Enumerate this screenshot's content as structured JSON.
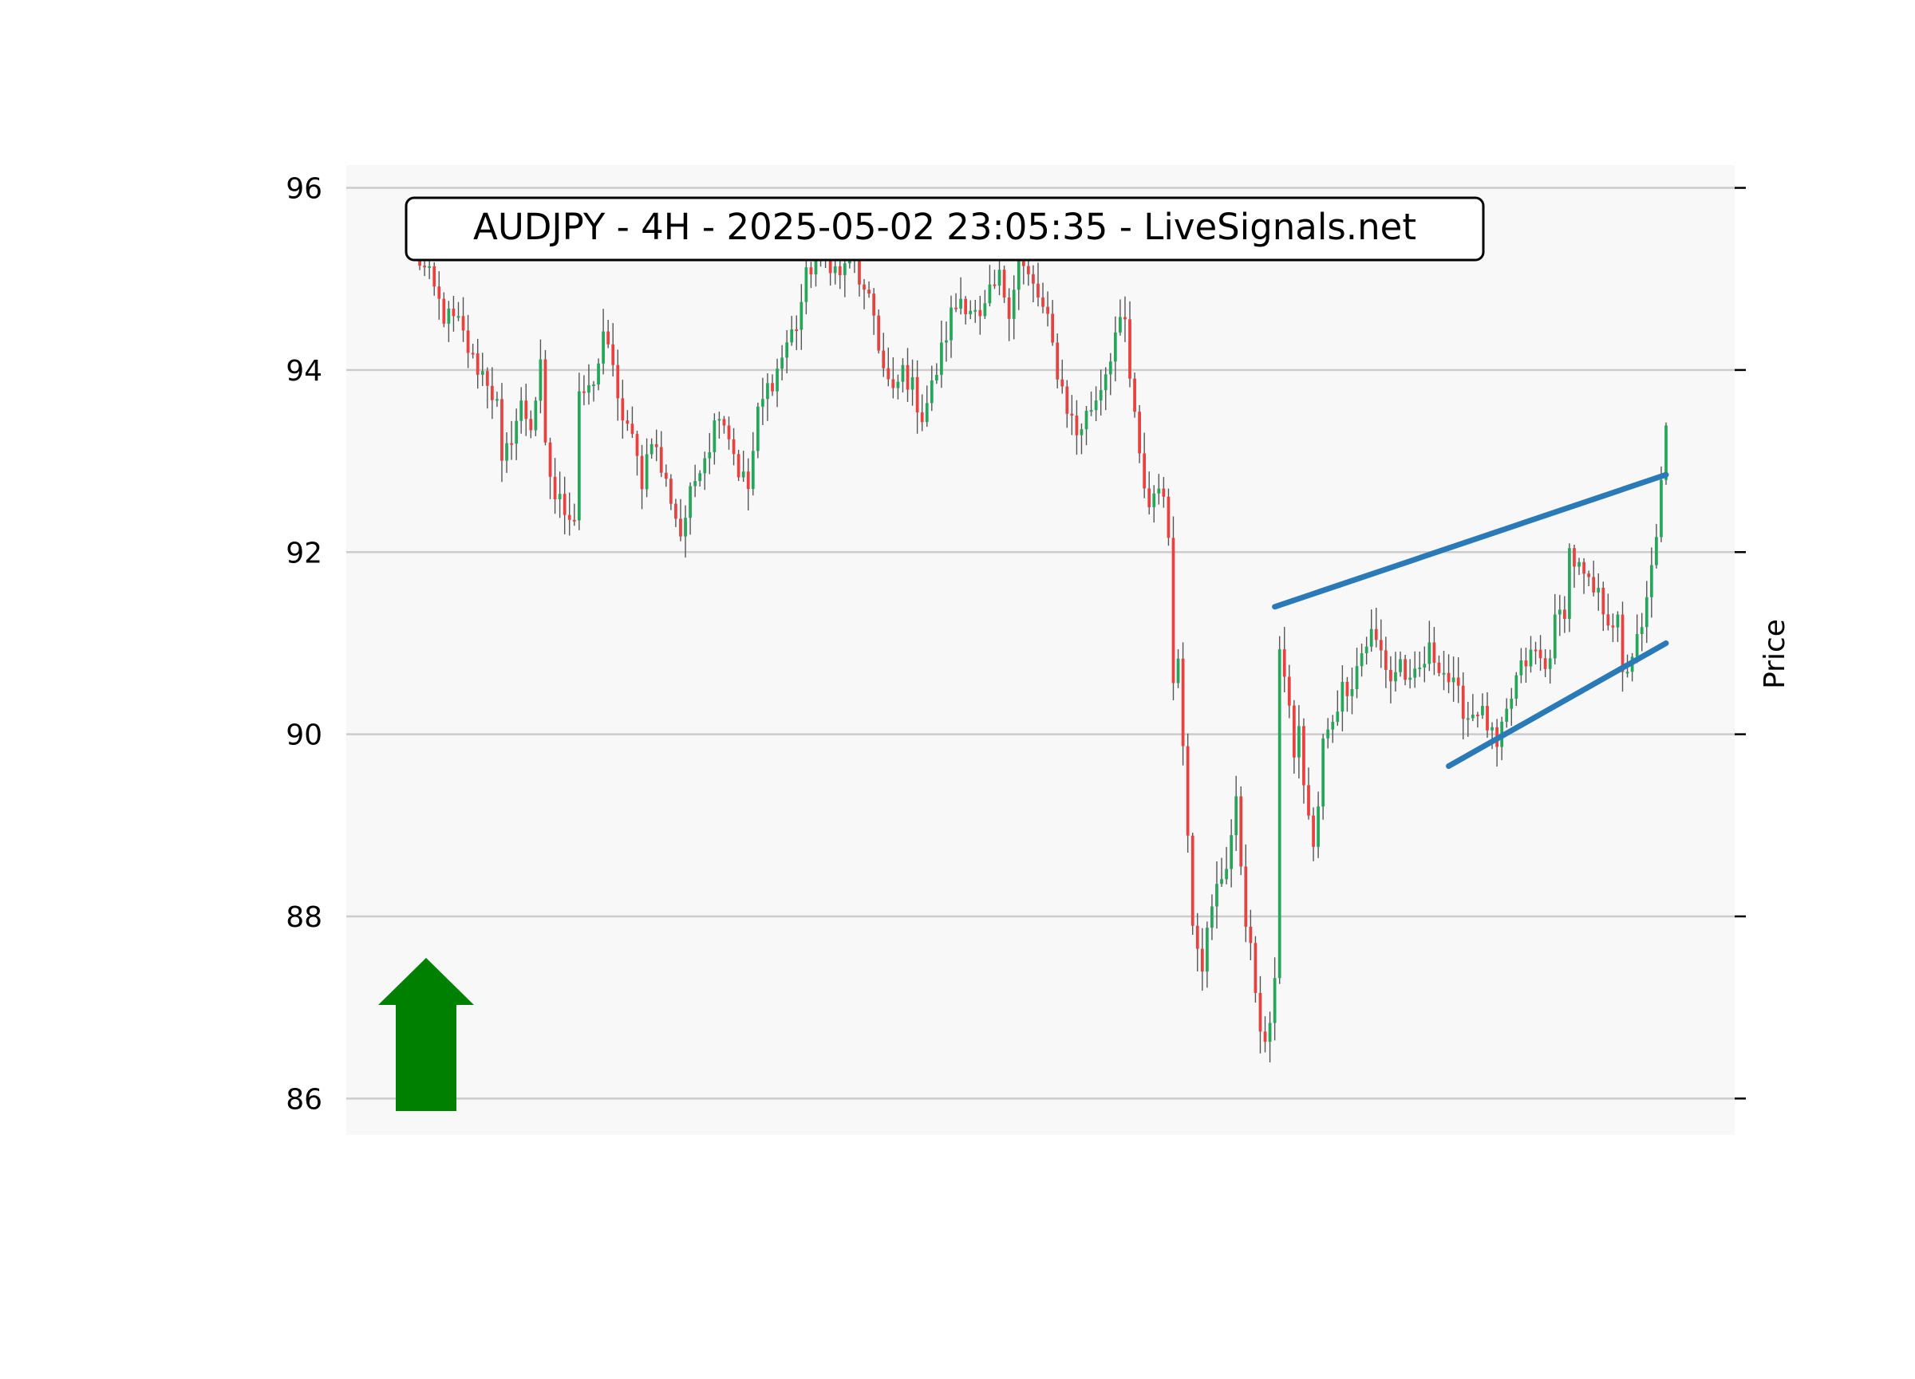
{
  "chart_data": {
    "type": "candlestick",
    "title": "AUDJPY - 4H - 2025-05-02 23:05:35 - LiveSignals.net",
    "ylabel": "Price",
    "xlabel": "",
    "ylim": [
      85.6,
      96.25
    ],
    "yticks": [
      86,
      88,
      90,
      92,
      94,
      96
    ],
    "ytick_labels": [
      "86",
      "88",
      "90",
      "92",
      "94",
      "96"
    ],
    "grid": true,
    "colors": {
      "up": "#26a65b",
      "down": "#e8413f",
      "wick": "#555555",
      "trendline": "#2a7ab8",
      "arrow": "#008000",
      "plot_bg": "#f8f8f8",
      "grid": "#cccccc"
    },
    "signal": {
      "direction": "up",
      "icon": "up-arrow-icon"
    },
    "x_count": 260,
    "anchors": [
      [
        0,
        95.3
      ],
      [
        3,
        95.0
      ],
      [
        6,
        94.6
      ],
      [
        9,
        94.5
      ],
      [
        12,
        94.1
      ],
      [
        15,
        93.9
      ],
      [
        17,
        93.6
      ],
      [
        18,
        92.9
      ],
      [
        20,
        93.3
      ],
      [
        22,
        93.6
      ],
      [
        24,
        93.4
      ],
      [
        26,
        94.0
      ],
      [
        27,
        93.1
      ],
      [
        29,
        92.6
      ],
      [
        31,
        92.5
      ],
      [
        33,
        92.4
      ],
      [
        34,
        93.8
      ],
      [
        36,
        93.7
      ],
      [
        38,
        94.0
      ],
      [
        39,
        94.5
      ],
      [
        40,
        94.3
      ],
      [
        42,
        93.6
      ],
      [
        44,
        93.4
      ],
      [
        46,
        93.0
      ],
      [
        47,
        92.8
      ],
      [
        49,
        93.3
      ],
      [
        51,
        92.9
      ],
      [
        53,
        92.6
      ],
      [
        55,
        92.2
      ],
      [
        57,
        92.6
      ],
      [
        59,
        93.0
      ],
      [
        61,
        93.2
      ],
      [
        63,
        93.6
      ],
      [
        65,
        93.3
      ],
      [
        67,
        92.9
      ],
      [
        69,
        92.7
      ],
      [
        71,
        93.5
      ],
      [
        73,
        93.8
      ],
      [
        75,
        94.0
      ],
      [
        77,
        94.3
      ],
      [
        79,
        94.5
      ],
      [
        81,
        95.0
      ],
      [
        84,
        95.4
      ],
      [
        86,
        95.2
      ],
      [
        88,
        95.0
      ],
      [
        90,
        95.4
      ],
      [
        93,
        94.8
      ],
      [
        95,
        94.6
      ],
      [
        97,
        94.0
      ],
      [
        99,
        93.7
      ],
      [
        101,
        94.0
      ],
      [
        103,
        93.8
      ],
      [
        105,
        93.5
      ],
      [
        107,
        93.8
      ],
      [
        109,
        94.2
      ],
      [
        111,
        94.6
      ],
      [
        113,
        94.8
      ],
      [
        115,
        94.7
      ],
      [
        117,
        94.5
      ],
      [
        119,
        94.8
      ],
      [
        121,
        95.0
      ],
      [
        123,
        94.7
      ],
      [
        125,
        95.2
      ],
      [
        127,
        95.0
      ],
      [
        129,
        94.8
      ],
      [
        131,
        94.5
      ],
      [
        133,
        94.0
      ],
      [
        135,
        93.6
      ],
      [
        137,
        93.3
      ],
      [
        139,
        93.5
      ],
      [
        141,
        93.7
      ],
      [
        143,
        94.0
      ],
      [
        145,
        94.4
      ],
      [
        147,
        94.5
      ],
      [
        148,
        93.9
      ],
      [
        150,
        93.0
      ],
      [
        152,
        92.5
      ],
      [
        154,
        92.8
      ],
      [
        156,
        92.2
      ],
      [
        157,
        90.7
      ],
      [
        158,
        90.8
      ],
      [
        160,
        89.0
      ],
      [
        161,
        88.0
      ],
      [
        163,
        87.5
      ],
      [
        164,
        87.8
      ],
      [
        166,
        88.3
      ],
      [
        168,
        88.6
      ],
      [
        170,
        89.2
      ],
      [
        172,
        88.0
      ],
      [
        173,
        87.6
      ],
      [
        174,
        87.2
      ],
      [
        175,
        86.6
      ],
      [
        176,
        86.7
      ],
      [
        177,
        86.9
      ],
      [
        178,
        87.3
      ],
      [
        179,
        90.8
      ],
      [
        180,
        90.7
      ],
      [
        182,
        89.8
      ],
      [
        183,
        90.0
      ],
      [
        184,
        89.5
      ],
      [
        185,
        89.1
      ],
      [
        186,
        88.7
      ],
      [
        187,
        89.2
      ],
      [
        188,
        89.9
      ],
      [
        189,
        90.0
      ],
      [
        190,
        90.2
      ],
      [
        192,
        90.5
      ],
      [
        194,
        90.6
      ],
      [
        196,
        90.9
      ],
      [
        198,
        91.1
      ],
      [
        200,
        90.9
      ],
      [
        202,
        90.6
      ],
      [
        204,
        90.8
      ],
      [
        206,
        90.5
      ],
      [
        208,
        90.7
      ],
      [
        210,
        90.9
      ],
      [
        212,
        90.8
      ],
      [
        214,
        90.6
      ],
      [
        216,
        90.4
      ],
      [
        218,
        90.2
      ],
      [
        220,
        90.3
      ],
      [
        222,
        90.1
      ],
      [
        224,
        89.8
      ],
      [
        226,
        90.2
      ],
      [
        228,
        90.6
      ],
      [
        230,
        90.8
      ],
      [
        232,
        90.9
      ],
      [
        234,
        90.7
      ],
      [
        236,
        91.2
      ],
      [
        238,
        91.4
      ],
      [
        239,
        92.0
      ],
      [
        241,
        91.8
      ],
      [
        243,
        91.6
      ],
      [
        245,
        91.5
      ],
      [
        247,
        91.3
      ],
      [
        249,
        91.2
      ],
      [
        250,
        90.6
      ],
      [
        252,
        90.9
      ],
      [
        254,
        91.1
      ],
      [
        256,
        91.8
      ],
      [
        258,
        92.7
      ],
      [
        259,
        93.3
      ]
    ],
    "trendlines": [
      {
        "name": "",
        "start": [
          178,
          91.4
        ],
        "end": [
          259,
          92.85
        ]
      },
      {
        "name": "",
        "start": [
          214,
          89.65
        ],
        "end": [
          259,
          91.0
        ]
      }
    ]
  }
}
